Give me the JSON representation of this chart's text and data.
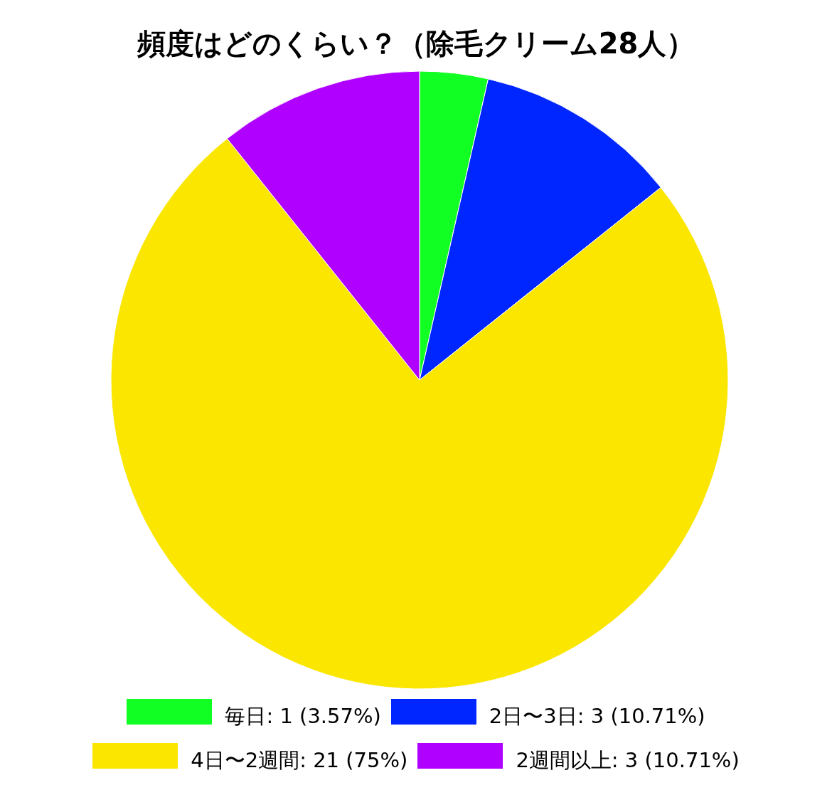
{
  "chart_data": {
    "type": "pie",
    "title": "頻度はどのくらい？（除毛クリーム28人）",
    "categories": [
      "毎日",
      "2日〜3日",
      "4日〜2週間",
      "2週間以上"
    ],
    "values": [
      1,
      3,
      21,
      3
    ],
    "value_labels": [
      "1 (3.57%)",
      "3 (10.71%)",
      "21 (75%)",
      "3 (10.71%)"
    ],
    "colors": [
      "#11ff22",
      "#0026ff",
      "#fbe600",
      "#b000ff"
    ],
    "legend": "bottom"
  }
}
